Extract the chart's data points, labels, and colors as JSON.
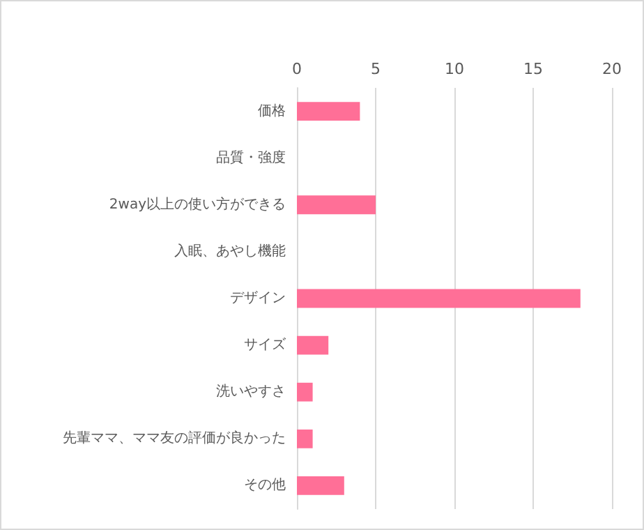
{
  "chart_data": {
    "type": "bar",
    "orientation": "horizontal",
    "categories": [
      "価格",
      "品質・強度",
      "2way以上の使い方ができる",
      "入眠、あやし機能",
      "デザイン",
      "サイズ",
      "洗いやすさ",
      "先輩ママ、ママ友の評価が良かった",
      "その他"
    ],
    "values": [
      4,
      0,
      5,
      0,
      18,
      2,
      1,
      1,
      3
    ],
    "color": "#ff6f97",
    "xlim": [
      0,
      20
    ],
    "xticks": [
      0,
      5,
      10,
      15,
      20
    ],
    "grid": "x"
  }
}
